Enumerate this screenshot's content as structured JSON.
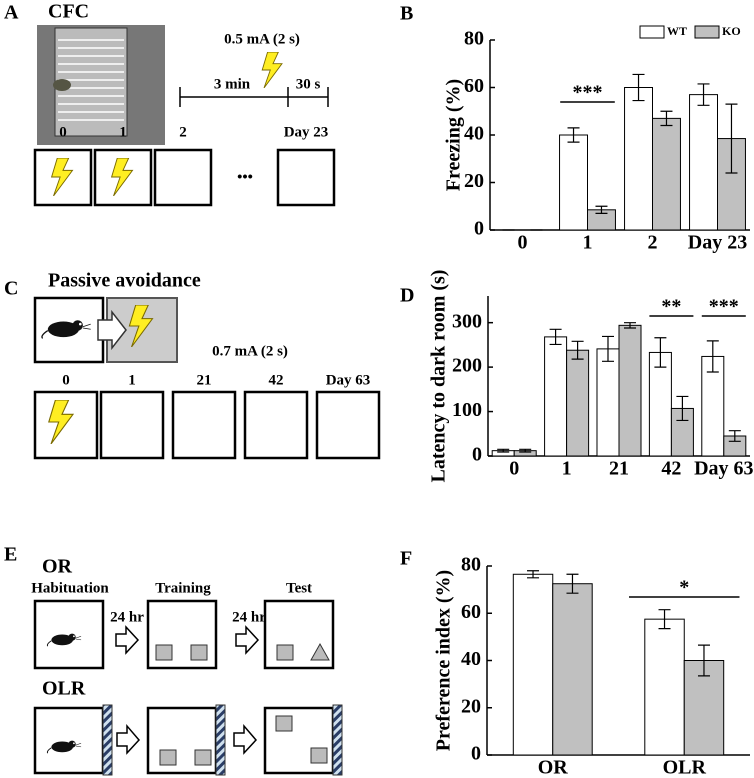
{
  "panels": {
    "A": {
      "letter": "A",
      "title": "CFC",
      "shock": "0.5 mA (2 s)",
      "phase1": "3 min",
      "phase2": "30 s",
      "days": [
        "0",
        "1",
        "2",
        "Day 23"
      ],
      "ellipsis": "•••"
    },
    "B": {
      "letter": "B"
    },
    "C": {
      "letter": "C",
      "title": "Passive avoidance",
      "shock": "0.7 mA (2 s)",
      "days": [
        "0",
        "1",
        "21",
        "42",
        "Day 63"
      ]
    },
    "D": {
      "letter": "D"
    },
    "E": {
      "letter": "E",
      "or": "OR",
      "olr": "OLR",
      "stages": [
        "Habituation",
        "Training",
        "Test"
      ],
      "interval1": "24 hr",
      "interval2": "24 hr"
    },
    "F": {
      "letter": "F"
    }
  },
  "chart_data": [
    {
      "type": "bar",
      "ylabel": "Freezing (%)",
      "categories": [
        "0",
        "1",
        "2",
        "Day 23"
      ],
      "series": [
        {
          "name": "WT",
          "color": "#ffffff",
          "values": [
            0,
            40,
            60,
            57
          ],
          "errors": [
            0,
            3,
            5.5,
            4.5
          ]
        },
        {
          "name": "KO",
          "color": "#c0c0c0",
          "values": [
            0,
            8.5,
            47,
            38.5
          ],
          "errors": [
            0,
            1.5,
            3,
            14.5
          ]
        }
      ],
      "ylim": [
        0,
        80
      ],
      "yticks": [
        0,
        20,
        40,
        60,
        80
      ],
      "legend": "top-right",
      "annotations": [
        {
          "text": "***",
          "category": "1"
        }
      ]
    },
    {
      "type": "bar",
      "ylabel": "Latency to dark room (s)",
      "categories": [
        "0",
        "1",
        "21",
        "42",
        "Day 63"
      ],
      "series": [
        {
          "name": "WT",
          "color": "#ffffff",
          "values": [
            12,
            268,
            241,
            233,
            224
          ],
          "errors": [
            3,
            17,
            28,
            33,
            35
          ]
        },
        {
          "name": "KO",
          "color": "#c0c0c0",
          "values": [
            12,
            238,
            294,
            107,
            45
          ],
          "errors": [
            3,
            20,
            6,
            27,
            12
          ]
        }
      ],
      "ylim": [
        0,
        360
      ],
      "yticks": [
        0,
        100,
        200,
        300
      ],
      "annotations": [
        {
          "text": "**",
          "category": "42"
        },
        {
          "text": "***",
          "category": "Day 63"
        }
      ]
    },
    {
      "type": "bar",
      "ylabel": "Preference index (%)",
      "categories": [
        "OR",
        "OLR"
      ],
      "series": [
        {
          "name": "WT",
          "color": "#ffffff",
          "values": [
            76.5,
            57.5
          ],
          "errors": [
            1.5,
            4
          ]
        },
        {
          "name": "KO",
          "color": "#c0c0c0",
          "values": [
            72.5,
            40
          ],
          "errors": [
            4,
            6.5
          ]
        }
      ],
      "ylim": [
        0,
        80
      ],
      "yticks": [
        0,
        20,
        40,
        60,
        80
      ],
      "annotations": [
        {
          "text": "*",
          "category": "OLR"
        }
      ]
    }
  ]
}
